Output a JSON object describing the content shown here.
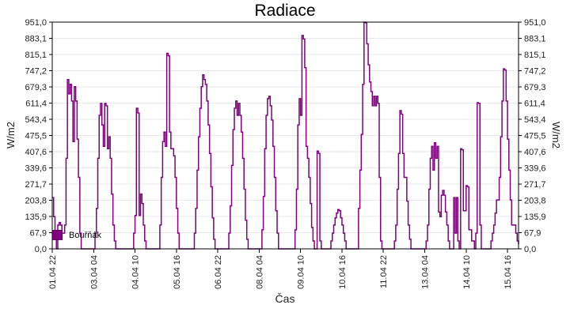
{
  "chart_data": {
    "type": "line",
    "title": "Radiace",
    "xlabel": "Čas",
    "ylabel": "W/m2",
    "ylabel_right": "W/m2",
    "ylim": [
      0,
      951
    ],
    "grid": "horizontal-light-gray",
    "legend_position": "bottom-left-inside",
    "y_tick_values": [
      0,
      67.9,
      135.9,
      203.8,
      271.7,
      339.6,
      407.6,
      475.5,
      543.4,
      611.4,
      679.3,
      747.2,
      815.1,
      883.1,
      951
    ],
    "y_tick_labels": [
      "0,0",
      "67,9",
      "135,9",
      "203,8",
      "271,7",
      "339,6",
      "407,6",
      "475,5",
      "543,4",
      "611,4",
      "679,3",
      "747,2",
      "815,1",
      "883,1",
      "951,0"
    ],
    "x_tick_hours": [
      0,
      30,
      60,
      90,
      120,
      150,
      180,
      210,
      240,
      270,
      300,
      330
    ],
    "x_tick_labels": [
      "01.04 22",
      "03.04 04",
      "04.04 10",
      "05.04 16",
      "06.04 22",
      "08.04 04",
      "09.04 10",
      "10.04 16",
      "11.04 22",
      "13.04 04",
      "14.04 10",
      "15.04 16"
    ],
    "x_start_label": "01.04 22",
    "hours_total": 338,
    "line_color": "#800080",
    "series": [
      {
        "name": "Bouřňák",
        "color": "#800080",
        "values": [
          215,
          135,
          66,
          0,
          100,
          110,
          100,
          66,
          66,
          100,
          380,
          710,
          650,
          690,
          620,
          450,
          680,
          620,
          460,
          300,
          66,
          0,
          0,
          0,
          0,
          0,
          0,
          0,
          0,
          0,
          0,
          66,
          170,
          380,
          560,
          610,
          520,
          430,
          610,
          600,
          420,
          470,
          380,
          230,
          100,
          33,
          0,
          0,
          0,
          0,
          0,
          0,
          0,
          0,
          0,
          0,
          0,
          0,
          0,
          66,
          140,
          590,
          570,
          140,
          230,
          190,
          100,
          33,
          0,
          0,
          0,
          0,
          0,
          0,
          0,
          0,
          0,
          0,
          100,
          300,
          450,
          490,
          430,
          820,
          810,
          490,
          420,
          420,
          390,
          300,
          170,
          66,
          0,
          0,
          0,
          0,
          0,
          0,
          0,
          0,
          0,
          0,
          0,
          66,
          170,
          330,
          470,
          590,
          680,
          730,
          710,
          690,
          620,
          520,
          400,
          260,
          130,
          40,
          0,
          0,
          0,
          0,
          0,
          0,
          0,
          0,
          0,
          0,
          66,
          180,
          350,
          500,
          590,
          620,
          560,
          610,
          560,
          490,
          380,
          250,
          120,
          40,
          0,
          0,
          0,
          0,
          0,
          0,
          0,
          0,
          0,
          0,
          80,
          220,
          420,
          560,
          630,
          640,
          600,
          540,
          430,
          300,
          160,
          66,
          0,
          0,
          0,
          0,
          0,
          0,
          0,
          0,
          0,
          0,
          0,
          0,
          80,
          250,
          520,
          630,
          560,
          895,
          880,
          760,
          430,
          380,
          300,
          190,
          90,
          33,
          0,
          0,
          410,
          400,
          33,
          0,
          0,
          0,
          0,
          0,
          0,
          0,
          33,
          66,
          100,
          130,
          150,
          165,
          160,
          130,
          100,
          66,
          33,
          0,
          0,
          0,
          0,
          0,
          0,
          0,
          0,
          0,
          170,
          330,
          480,
          690,
          951,
          948,
          860,
          772,
          700,
          660,
          600,
          640,
          600,
          640,
          610,
          300,
          33,
          0,
          0,
          0,
          0,
          0,
          0,
          0,
          0,
          0,
          33,
          100,
          250,
          400,
          580,
          565,
          400,
          300,
          300,
          200,
          100,
          40,
          0,
          0,
          0,
          0,
          0,
          0,
          0,
          0,
          0,
          0,
          0,
          33,
          100,
          250,
          380,
          430,
          330,
          445,
          380,
          430,
          155,
          135,
          225,
          245,
          225,
          155,
          100,
          33,
          0,
          0,
          0,
          215,
          66,
          215,
          33,
          0,
          420,
          415,
          160,
          160,
          265,
          260,
          80,
          80,
          33,
          33,
          0,
          66,
          613,
          610,
          100,
          0,
          0,
          0,
          0,
          0,
          0,
          0,
          33,
          66,
          100,
          150,
          205,
          205,
          300,
          470,
          620,
          755,
          750,
          620,
          460,
          330,
          205,
          100,
          100,
          100,
          66,
          33,
          20
        ]
      }
    ]
  }
}
